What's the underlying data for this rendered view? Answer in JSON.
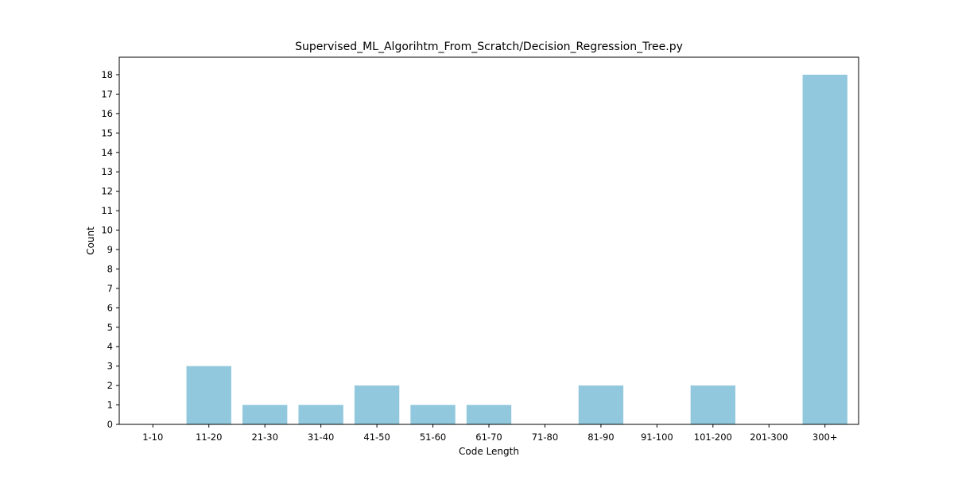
{
  "colors": {
    "bar": "#92c8dd",
    "axis": "#000000",
    "background": "#ffffff"
  },
  "chart_data": {
    "type": "bar",
    "title": "Supervised_ML_Algorihtm_From_Scratch/Decision_Regression_Tree.py",
    "xlabel": "Code Length",
    "ylabel": "Count",
    "categories": [
      "1-10",
      "11-20",
      "21-30",
      "31-40",
      "41-50",
      "51-60",
      "61-70",
      "71-80",
      "81-90",
      "91-100",
      "101-200",
      "201-300",
      "300+"
    ],
    "values": [
      0,
      3,
      1,
      1,
      2,
      1,
      1,
      0,
      2,
      0,
      2,
      0,
      18
    ],
    "ylim": [
      0,
      18.9
    ],
    "yticks": [
      0,
      1,
      2,
      3,
      4,
      5,
      6,
      7,
      8,
      9,
      10,
      11,
      12,
      13,
      14,
      15,
      16,
      17,
      18
    ],
    "grid": false,
    "legend": "none"
  }
}
